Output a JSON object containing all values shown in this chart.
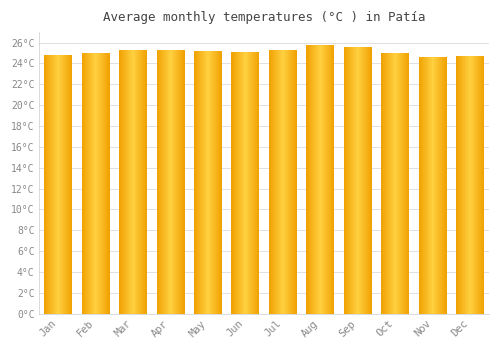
{
  "months": [
    "Jan",
    "Feb",
    "Mar",
    "Apr",
    "May",
    "Jun",
    "Jul",
    "Aug",
    "Sep",
    "Oct",
    "Nov",
    "Dec"
  ],
  "temperatures": [
    24.8,
    25.0,
    25.3,
    25.3,
    25.2,
    25.1,
    25.3,
    25.8,
    25.6,
    25.0,
    24.6,
    24.7
  ],
  "title": "Average monthly temperatures (°C ) in Patía",
  "ylim": [
    0,
    27
  ],
  "yticks": [
    0,
    2,
    4,
    6,
    8,
    10,
    12,
    14,
    16,
    18,
    20,
    22,
    24,
    26
  ],
  "bar_color_center": "#FFD040",
  "bar_color_edge": "#F0A000",
  "background_color": "#ffffff",
  "grid_color": "#e0e0e0",
  "tick_label_color": "#888888",
  "title_color": "#444444",
  "font_family": "monospace",
  "bar_width": 0.75,
  "bar_gap_color": "#ffffff"
}
